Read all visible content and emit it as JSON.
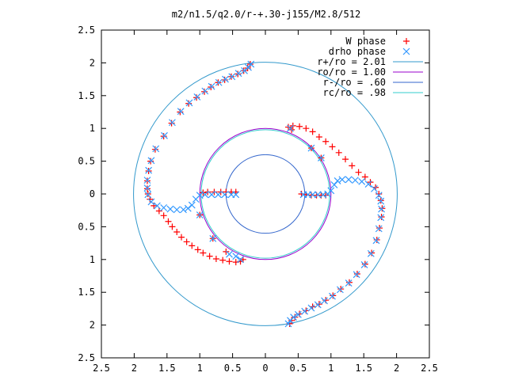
{
  "chart_data": {
    "type": "scatter",
    "title": "m2/n1.5/q2.0/r-+.30-j155/M2.8/512",
    "xlim": [
      -2.5,
      2.5
    ],
    "ylim": [
      -2.5,
      2.5
    ],
    "x_ticks": [
      -2.5,
      -2,
      -1.5,
      -1,
      -0.5,
      0,
      0.5,
      1,
      1.5,
      2,
      2.5
    ],
    "x_tick_labels": [
      "2.5",
      "2",
      "1.5",
      "1",
      "0.5",
      "0",
      "0.5",
      "1",
      "1.5",
      "2",
      "2.5"
    ],
    "y_ticks": [
      2.5,
      2,
      1.5,
      1,
      0.5,
      0,
      -0.5,
      -1,
      -1.5,
      -2,
      -2.5
    ],
    "y_tick_labels": [
      "2.5",
      "2",
      "1.5",
      "1",
      "0.5",
      "0",
      "0.5",
      "1",
      "1.5",
      "2",
      "2.5"
    ],
    "grid": false,
    "legend_position": "top-right",
    "legend": [
      {
        "label": "W phase",
        "marker": "plus",
        "color": "#ff0000"
      },
      {
        "label": "drho phase",
        "marker": "cross",
        "color": "#3399ff"
      },
      {
        "label": "r+/ro = 2.01",
        "marker": "line",
        "color": "#3399cc"
      },
      {
        "label": "ro/ro = 1.00",
        "marker": "line",
        "color": "#9900cc"
      },
      {
        "label": "r-/ro = .60",
        "marker": "line",
        "color": "#3366cc"
      },
      {
        "label": "rc/ro = .98",
        "marker": "line",
        "color": "#33cccc"
      }
    ],
    "circles": [
      {
        "name": "r+/ro = 2.01",
        "r": 2.01,
        "color": "#3399cc"
      },
      {
        "name": "ro/ro = 1.00",
        "r": 1.0,
        "color": "#9900cc"
      },
      {
        "name": "r-/ro = .60",
        "r": 0.6,
        "color": "#3366cc"
      },
      {
        "name": "rc/ro = .98",
        "r": 0.98,
        "color": "#33cccc"
      }
    ],
    "series": [
      {
        "name": "W phase",
        "color": "#ff0000",
        "marker": "plus",
        "points": [
          [
            -0.23,
            1.98
          ],
          [
            -0.27,
            1.92
          ],
          [
            -0.33,
            1.88
          ],
          [
            -0.42,
            1.83
          ],
          [
            -0.52,
            1.79
          ],
          [
            -0.62,
            1.74
          ],
          [
            -0.72,
            1.7
          ],
          [
            -0.83,
            1.63
          ],
          [
            -0.93,
            1.56
          ],
          [
            -1.05,
            1.47
          ],
          [
            -1.17,
            1.38
          ],
          [
            -1.3,
            1.25
          ],
          [
            -1.43,
            1.08
          ],
          [
            -1.55,
            0.88
          ],
          [
            -1.68,
            0.68
          ],
          [
            -1.75,
            0.5
          ],
          [
            -1.78,
            0.35
          ],
          [
            -1.8,
            0.2
          ],
          [
            -1.8,
            0.08
          ],
          [
            -1.79,
            0.0
          ],
          [
            -1.76,
            -0.08
          ],
          [
            -1.7,
            -0.18
          ],
          [
            -1.62,
            -0.26
          ],
          [
            -1.55,
            -0.33
          ],
          [
            -1.48,
            -0.42
          ],
          [
            -1.42,
            -0.5
          ],
          [
            -1.35,
            -0.58
          ],
          [
            -1.28,
            -0.66
          ],
          [
            -1.2,
            -0.73
          ],
          [
            -1.12,
            -0.79
          ],
          [
            -1.03,
            -0.85
          ],
          [
            -0.95,
            -0.9
          ],
          [
            -0.85,
            -0.95
          ],
          [
            -0.75,
            -0.99
          ],
          [
            -0.65,
            -1.01
          ],
          [
            -0.55,
            -1.03
          ],
          [
            -0.45,
            -1.04
          ],
          [
            -0.38,
            -1.03
          ],
          [
            -0.34,
            -1.0
          ],
          [
            -1.0,
            -0.32
          ],
          [
            -0.8,
            -0.68
          ],
          [
            -0.6,
            -0.88
          ],
          [
            -0.95,
            0.02
          ],
          [
            -0.88,
            0.03
          ],
          [
            -0.78,
            0.03
          ],
          [
            -0.68,
            0.03
          ],
          [
            -0.6,
            0.03
          ],
          [
            -0.52,
            0.03
          ],
          [
            -0.45,
            0.03
          ],
          [
            0.35,
            1.02
          ],
          [
            0.42,
            1.04
          ],
          [
            0.52,
            1.03
          ],
          [
            0.62,
            1.0
          ],
          [
            0.72,
            0.95
          ],
          [
            0.82,
            0.87
          ],
          [
            0.92,
            0.8
          ],
          [
            1.02,
            0.72
          ],
          [
            1.12,
            0.63
          ],
          [
            1.22,
            0.53
          ],
          [
            1.32,
            0.43
          ],
          [
            1.42,
            0.33
          ],
          [
            1.52,
            0.26
          ],
          [
            1.6,
            0.18
          ],
          [
            1.68,
            0.1
          ],
          [
            1.73,
            0.0
          ],
          [
            1.76,
            -0.1
          ],
          [
            1.78,
            -0.22
          ],
          [
            1.77,
            -0.35
          ],
          [
            1.74,
            -0.52
          ],
          [
            1.7,
            -0.7
          ],
          [
            1.62,
            -0.9
          ],
          [
            1.52,
            -1.07
          ],
          [
            1.4,
            -1.22
          ],
          [
            1.28,
            -1.35
          ],
          [
            1.15,
            -1.45
          ],
          [
            1.03,
            -1.55
          ],
          [
            0.92,
            -1.62
          ],
          [
            0.82,
            -1.68
          ],
          [
            0.72,
            -1.72
          ],
          [
            0.62,
            -1.78
          ],
          [
            0.52,
            -1.83
          ],
          [
            0.45,
            -1.88
          ],
          [
            0.4,
            -1.93
          ],
          [
            0.37,
            -1.98
          ],
          [
            0.4,
            0.98
          ],
          [
            0.7,
            0.7
          ],
          [
            0.85,
            0.55
          ],
          [
            0.55,
            0.0
          ],
          [
            0.62,
            -0.01
          ],
          [
            0.7,
            -0.02
          ],
          [
            0.78,
            -0.02
          ],
          [
            0.85,
            -0.02
          ],
          [
            0.92,
            -0.02
          ]
        ]
      },
      {
        "name": "drho phase",
        "color": "#3399ff",
        "marker": "cross",
        "points": [
          [
            -0.22,
            1.98
          ],
          [
            -0.26,
            1.93
          ],
          [
            -0.32,
            1.88
          ],
          [
            -0.41,
            1.84
          ],
          [
            -0.51,
            1.79
          ],
          [
            -0.61,
            1.75
          ],
          [
            -0.71,
            1.7
          ],
          [
            -0.82,
            1.64
          ],
          [
            -0.92,
            1.57
          ],
          [
            -1.04,
            1.48
          ],
          [
            -1.16,
            1.39
          ],
          [
            -1.29,
            1.26
          ],
          [
            -1.42,
            1.09
          ],
          [
            -1.54,
            0.89
          ],
          [
            -1.67,
            0.69
          ],
          [
            -1.74,
            0.51
          ],
          [
            -1.78,
            0.36
          ],
          [
            -1.8,
            0.21
          ],
          [
            -1.8,
            0.09
          ],
          [
            -1.79,
            -0.01
          ],
          [
            -1.74,
            -0.12
          ],
          [
            -1.65,
            -0.18
          ],
          [
            -1.55,
            -0.21
          ],
          [
            -1.45,
            -0.23
          ],
          [
            -1.35,
            -0.24
          ],
          [
            -1.25,
            -0.24
          ],
          [
            -1.18,
            -0.22
          ],
          [
            -1.12,
            -0.17
          ],
          [
            -1.06,
            -0.08
          ],
          [
            -1.0,
            -0.02
          ],
          [
            -0.92,
            -0.01
          ],
          [
            -0.82,
            -0.01
          ],
          [
            -0.72,
            -0.01
          ],
          [
            -0.62,
            -0.01
          ],
          [
            -0.52,
            -0.01
          ],
          [
            -0.45,
            -0.01
          ],
          [
            -0.38,
            -1.0
          ],
          [
            -0.45,
            -0.95
          ],
          [
            -0.55,
            -0.92
          ],
          [
            -0.8,
            -0.68
          ],
          [
            -1.0,
            -0.32
          ],
          [
            0.35,
            -1.98
          ],
          [
            0.38,
            -1.93
          ],
          [
            0.43,
            -1.88
          ],
          [
            0.5,
            -1.84
          ],
          [
            0.6,
            -1.79
          ],
          [
            0.7,
            -1.74
          ],
          [
            0.8,
            -1.69
          ],
          [
            0.9,
            -1.63
          ],
          [
            1.02,
            -1.56
          ],
          [
            1.14,
            -1.46
          ],
          [
            1.27,
            -1.36
          ],
          [
            1.39,
            -1.23
          ],
          [
            1.51,
            -1.08
          ],
          [
            1.61,
            -0.91
          ],
          [
            1.69,
            -0.71
          ],
          [
            1.73,
            -0.53
          ],
          [
            1.76,
            -0.36
          ],
          [
            1.77,
            -0.23
          ],
          [
            1.76,
            -0.11
          ],
          [
            1.73,
            -0.02
          ],
          [
            1.66,
            0.08
          ],
          [
            1.57,
            0.15
          ],
          [
            1.47,
            0.19
          ],
          [
            1.37,
            0.21
          ],
          [
            1.27,
            0.22
          ],
          [
            1.17,
            0.22
          ],
          [
            1.1,
            0.2
          ],
          [
            1.05,
            0.14
          ],
          [
            1.0,
            0.05
          ],
          [
            0.95,
            0.0
          ],
          [
            0.88,
            -0.01
          ],
          [
            0.8,
            -0.01
          ],
          [
            0.72,
            -0.01
          ],
          [
            0.65,
            -0.01
          ],
          [
            0.58,
            -0.01
          ],
          [
            0.38,
            1.0
          ],
          [
            0.7,
            0.7
          ],
          [
            0.85,
            0.55
          ]
        ]
      }
    ]
  }
}
